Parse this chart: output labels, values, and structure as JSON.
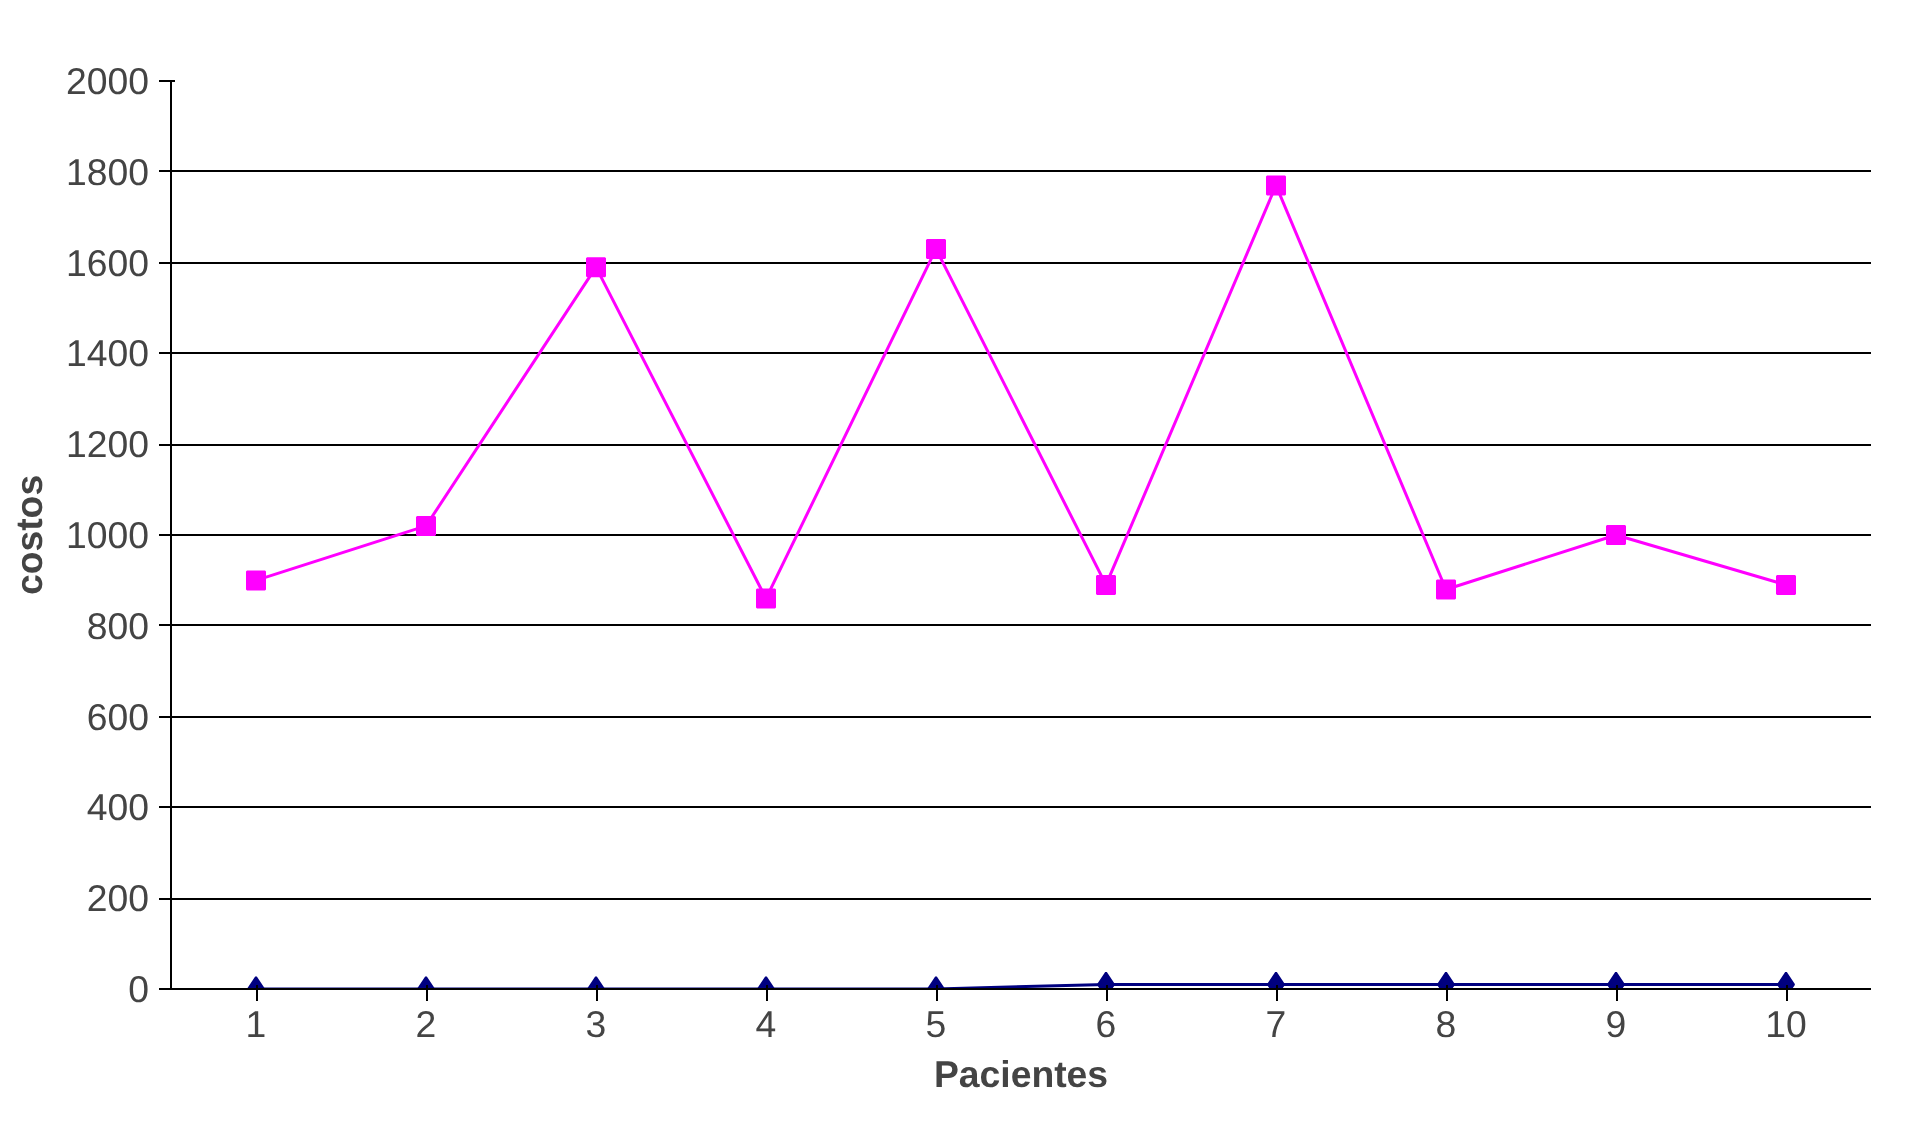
{
  "chart_data": {
    "type": "line",
    "xlabel": "Pacientes",
    "ylabel": "costos",
    "categories": [
      "1",
      "2",
      "3",
      "4",
      "5",
      "6",
      "7",
      "8",
      "9",
      "10"
    ],
    "series": [
      {
        "color": "#ff00ff",
        "marker": "square",
        "values": [
          900,
          1020,
          1590,
          860,
          1630,
          890,
          1770,
          880,
          1000,
          890
        ]
      },
      {
        "color": "#000080",
        "marker": "diamond",
        "values": [
          0,
          0,
          0,
          0,
          0,
          10,
          10,
          10,
          10,
          10
        ]
      }
    ],
    "ylim": [
      0,
      2000
    ],
    "yticks": [
      0,
      200,
      400,
      600,
      800,
      1000,
      1200,
      1400,
      1600,
      1800,
      2000
    ],
    "grid": "y"
  }
}
